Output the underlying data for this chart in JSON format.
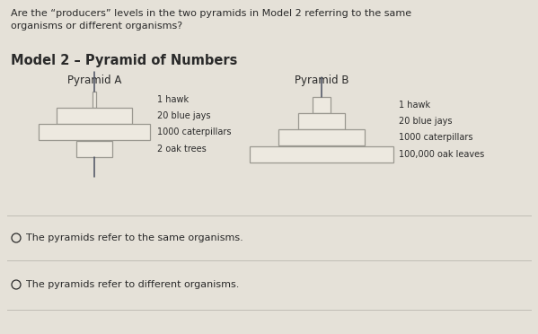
{
  "bg_color": "#e5e1d8",
  "title_question": "Are the “producers” levels in the two pyramids in Model 2 referring to the same\norganisms or different organisms?",
  "model_title": "Model 2 – Pyramid of Numbers",
  "pyramid_a_title": "Pyramid A",
  "pyramid_b_title": "Pyramid B",
  "pyramid_a_labels": [
    "1 hawk",
    "20 blue jays",
    "1000 caterpillars",
    "2 oak trees"
  ],
  "pyramid_b_labels": [
    "1 hawk",
    "20 blue jays",
    "1000 caterpillars",
    "100,000 oak leaves"
  ],
  "option1": "The pyramids refer to the same organisms.",
  "option2": "The pyramids refer to different organisms.",
  "box_edge": "#9a9890",
  "box_face": "#ede9e0",
  "text_color": "#2a2a2a",
  "line_color": "#4a5060",
  "sep_color": "#c0bdb5"
}
